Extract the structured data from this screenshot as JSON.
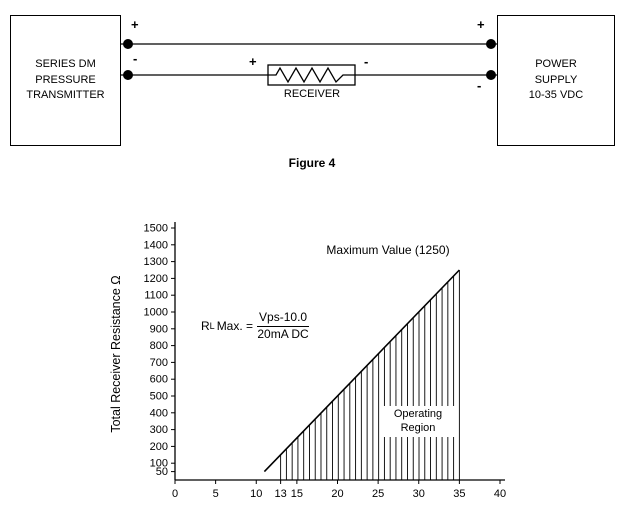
{
  "diagram": {
    "transmitter": {
      "lines": [
        "SERIES DM",
        "PRESSURE",
        "TRANSMITTER"
      ]
    },
    "power_supply": {
      "lines": [
        "POWER",
        "SUPPLY",
        "10-35 VDC"
      ]
    },
    "receiver": {
      "label": "RECEIVER"
    },
    "plus": "+",
    "minus": "-",
    "caption": "Figure 4"
  },
  "chart_data": {
    "type": "line",
    "title": "",
    "xlabel": "",
    "ylabel": "Total Receiver Resistance Ω",
    "xlim": [
      0,
      40
    ],
    "ylim": [
      0,
      1500
    ],
    "grid": false,
    "x_ticks": [
      0,
      5,
      10,
      13,
      15,
      20,
      25,
      30,
      35,
      40
    ],
    "y_ticks": [
      50,
      100,
      200,
      300,
      400,
      500,
      600,
      700,
      800,
      900,
      1000,
      1100,
      1200,
      1300,
      1400,
      1500
    ],
    "series": [
      {
        "name": "RL Max boundary",
        "x": [
          11,
          35
        ],
        "y": [
          50,
          1250
        ]
      }
    ],
    "operating_region": {
      "x_start": 13,
      "x_end": 35,
      "hatch": "vertical",
      "hatch_step": 0.7
    },
    "annotations": {
      "max_value": "Maximum Value (1250)",
      "operating_region_label": [
        "Operating",
        "Region"
      ],
      "formula": {
        "lhs": "R",
        "lhs_sub": "L",
        "eq": "Max. =",
        "numerator": "Vps-10.0",
        "denominator": "20mA DC"
      }
    }
  }
}
